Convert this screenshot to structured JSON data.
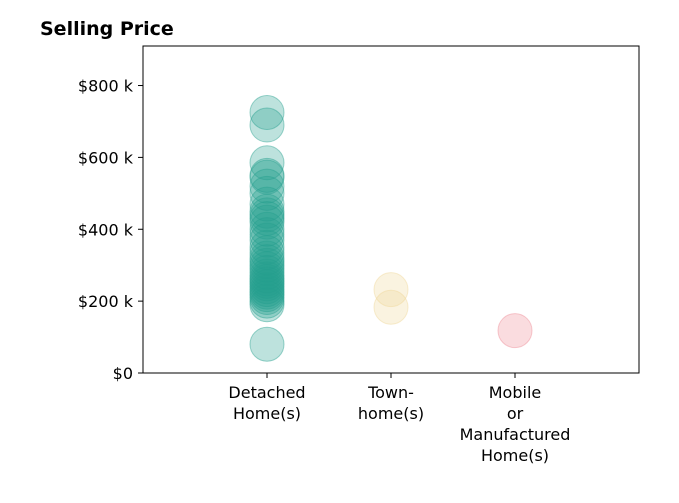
{
  "chart_data": {
    "type": "scatter",
    "title": "Selling Price",
    "xlabel": "",
    "ylabel": "",
    "ylim": [
      0,
      910000
    ],
    "grid": false,
    "legend": "none",
    "y_ticks": [
      {
        "value": 0,
        "label": "$0"
      },
      {
        "value": 200000,
        "label": "$200 k"
      },
      {
        "value": 400000,
        "label": "$400 k"
      },
      {
        "value": 600000,
        "label": "$600 k"
      },
      {
        "value": 800000,
        "label": "$800 k"
      }
    ],
    "categories": [
      {
        "lines": [
          "Detached",
          "Home(s)"
        ]
      },
      {
        "lines": [
          "Town-",
          "home(s)"
        ]
      },
      {
        "lines": [
          "Mobile",
          "or",
          "Manufactured",
          "Home(s)"
        ]
      }
    ],
    "series": [
      {
        "category_index": 0,
        "color": "#26a08e",
        "values": [
          725000,
          690000,
          585000,
          550000,
          545000,
          520000,
          500000,
          470000,
          450000,
          440000,
          430000,
          420000,
          400000,
          385000,
          370000,
          350000,
          335000,
          320000,
          310000,
          300000,
          290000,
          280000,
          270000,
          262000,
          255000,
          248000,
          240000,
          232000,
          225000,
          218000,
          210000,
          200000,
          190000,
          80000
        ]
      },
      {
        "category_index": 1,
        "color": "#f0d898",
        "values": [
          232000,
          183000
        ]
      },
      {
        "category_index": 2,
        "color": "#ee8a94",
        "values": [
          118000
        ]
      }
    ]
  }
}
